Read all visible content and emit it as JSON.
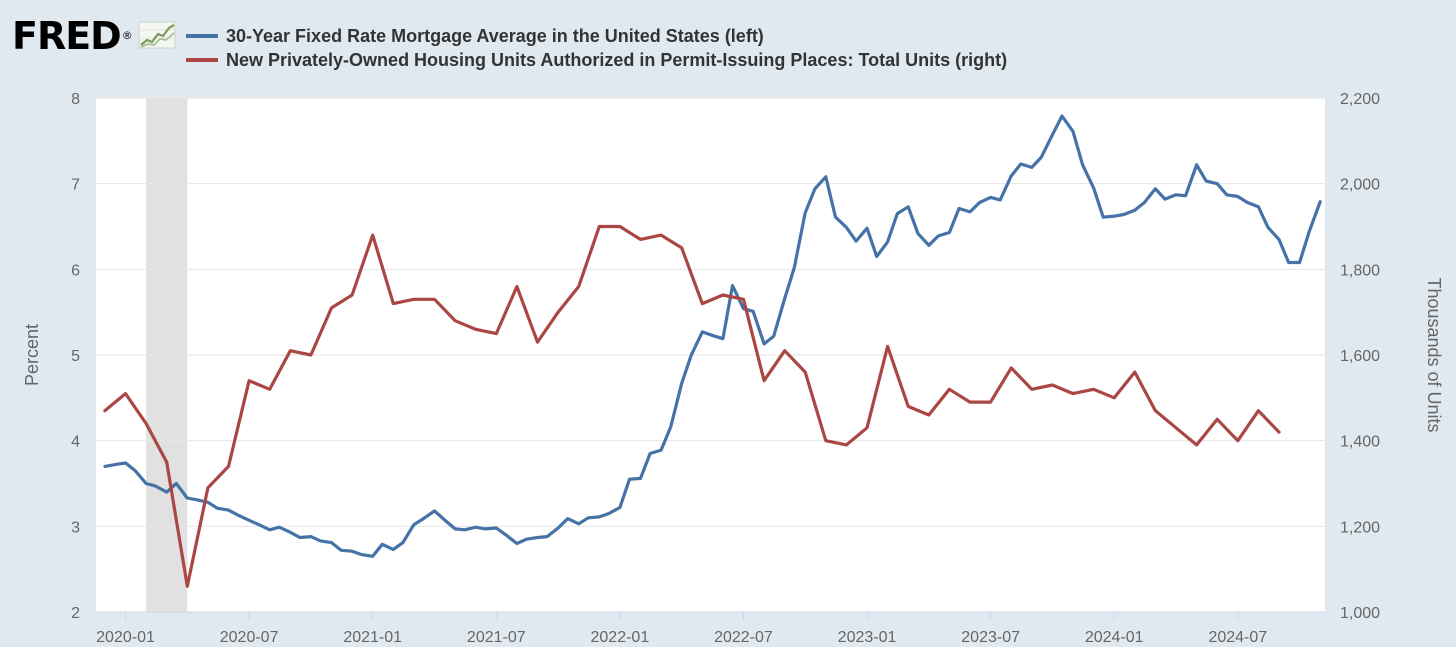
{
  "header": {
    "logo_text": "FRED",
    "logo_mark": "®",
    "logo_icon": "fred-chart-icon"
  },
  "colors": {
    "background": "#e1e9f0",
    "plot_background": "#ffffff",
    "gridline": "#e6e6e6",
    "recession_shading": "#e1e1e1",
    "mortgage_series": "#4572a7",
    "permits_series": "#aa4643"
  },
  "chart_data": {
    "type": "line",
    "title": "",
    "xlabel": "",
    "ylabel": "Percent",
    "y2label": "Thousands of Units",
    "x_ticks": [
      "2020-01",
      "2020-07",
      "2021-01",
      "2021-07",
      "2022-01",
      "2022-07",
      "2023-01",
      "2023-07",
      "2024-01",
      "2024-07"
    ],
    "ylim": [
      2,
      8
    ],
    "y_ticks": [
      "2",
      "3",
      "4",
      "5",
      "6",
      "7",
      "8"
    ],
    "y2lim": [
      1000,
      2200
    ],
    "y2_ticks": [
      "1,000",
      "1,200",
      "1,400",
      "1,600",
      "1,800",
      "2,000",
      "2,200"
    ],
    "grid": true,
    "legend_position": "top-left",
    "recession": {
      "start": "2020-02",
      "end": "2020-04"
    },
    "series": [
      {
        "name": "30-Year Fixed Rate Mortgage Average in the United States (left)",
        "axis": "left",
        "x": [
          "2019-12-01",
          "2019-12-15",
          "2020-01-01",
          "2020-01-15",
          "2020-02-01",
          "2020-02-15",
          "2020-03-01",
          "2020-03-15",
          "2020-04-01",
          "2020-04-15",
          "2020-05-01",
          "2020-05-15",
          "2020-06-01",
          "2020-06-15",
          "2020-07-01",
          "2020-07-15",
          "2020-08-01",
          "2020-08-15",
          "2020-09-01",
          "2020-09-15",
          "2020-10-01",
          "2020-10-15",
          "2020-11-01",
          "2020-11-15",
          "2020-12-01",
          "2020-12-15",
          "2021-01-01",
          "2021-01-15",
          "2021-02-01",
          "2021-02-15",
          "2021-03-01",
          "2021-03-15",
          "2021-04-01",
          "2021-04-15",
          "2021-05-01",
          "2021-05-15",
          "2021-06-01",
          "2021-06-15",
          "2021-07-01",
          "2021-07-15",
          "2021-08-01",
          "2021-08-15",
          "2021-09-01",
          "2021-09-15",
          "2021-10-01",
          "2021-10-15",
          "2021-11-01",
          "2021-11-15",
          "2021-12-01",
          "2021-12-15",
          "2022-01-01",
          "2022-01-15",
          "2022-02-01",
          "2022-02-15",
          "2022-03-01",
          "2022-03-15",
          "2022-04-01",
          "2022-04-15",
          "2022-05-01",
          "2022-05-15",
          "2022-06-01",
          "2022-06-15",
          "2022-07-01",
          "2022-07-15",
          "2022-08-01",
          "2022-08-15",
          "2022-09-01",
          "2022-09-15",
          "2022-10-01",
          "2022-10-15",
          "2022-11-01",
          "2022-11-15",
          "2022-12-01",
          "2022-12-15",
          "2023-01-01",
          "2023-01-15",
          "2023-02-01",
          "2023-02-15",
          "2023-03-01",
          "2023-03-15",
          "2023-04-01",
          "2023-04-15",
          "2023-05-01",
          "2023-05-15",
          "2023-06-01",
          "2023-06-15",
          "2023-07-01",
          "2023-07-15",
          "2023-08-01",
          "2023-08-15",
          "2023-09-01",
          "2023-09-15",
          "2023-10-01",
          "2023-10-15",
          "2023-11-01",
          "2023-11-15",
          "2023-12-01",
          "2023-12-15",
          "2024-01-01",
          "2024-01-15",
          "2024-02-01",
          "2024-02-15",
          "2024-03-01",
          "2024-03-15",
          "2024-04-01",
          "2024-04-15",
          "2024-05-01",
          "2024-05-15",
          "2024-06-01",
          "2024-06-15",
          "2024-07-01",
          "2024-07-15",
          "2024-08-01",
          "2024-08-15",
          "2024-09-01",
          "2024-09-15",
          "2024-10-01",
          "2024-10-15",
          "2024-11-01"
        ],
        "y": [
          3.7,
          3.72,
          3.74,
          3.65,
          3.5,
          3.47,
          3.4,
          3.5,
          3.33,
          3.31,
          3.28,
          3.21,
          3.19,
          3.13,
          3.07,
          3.02,
          2.96,
          2.99,
          2.93,
          2.87,
          2.88,
          2.83,
          2.81,
          2.72,
          2.71,
          2.67,
          2.65,
          2.79,
          2.73,
          2.81,
          3.02,
          3.09,
          3.18,
          3.08,
          2.97,
          2.96,
          2.99,
          2.97,
          2.98,
          2.9,
          2.8,
          2.85,
          2.87,
          2.88,
          2.98,
          3.09,
          3.03,
          3.1,
          3.11,
          3.15,
          3.22,
          3.55,
          3.56,
          3.85,
          3.89,
          4.16,
          4.67,
          5.0,
          5.27,
          5.23,
          5.19,
          5.81,
          5.54,
          5.51,
          5.13,
          5.22,
          5.66,
          6.02,
          6.66,
          6.94,
          7.08,
          6.61,
          6.49,
          6.33,
          6.48,
          6.15,
          6.32,
          6.65,
          6.73,
          6.42,
          6.28,
          6.39,
          6.43,
          6.71,
          6.67,
          6.78,
          6.84,
          6.81,
          7.09,
          7.23,
          7.19,
          7.31,
          7.57,
          7.79,
          7.61,
          7.22,
          6.95,
          6.61,
          6.62,
          6.64,
          6.69,
          6.78,
          6.94,
          6.82,
          6.87,
          6.86,
          7.22,
          7.03,
          7.0,
          6.87,
          6.85,
          6.78,
          6.73,
          6.49,
          6.35,
          6.08,
          6.08,
          6.44,
          6.79
        ]
      },
      {
        "name": "New Privately-Owned Housing Units Authorized in Permit-Issuing Places: Total Units (right)",
        "axis": "right",
        "x": [
          "2019-12-01",
          "2020-01-01",
          "2020-02-01",
          "2020-03-01",
          "2020-04-01",
          "2020-05-01",
          "2020-06-01",
          "2020-07-01",
          "2020-08-01",
          "2020-09-01",
          "2020-10-01",
          "2020-11-01",
          "2020-12-01",
          "2021-01-01",
          "2021-02-01",
          "2021-03-01",
          "2021-04-01",
          "2021-05-01",
          "2021-06-01",
          "2021-07-01",
          "2021-08-01",
          "2021-09-01",
          "2021-10-01",
          "2021-11-01",
          "2021-12-01",
          "2022-01-01",
          "2022-02-01",
          "2022-03-01",
          "2022-04-01",
          "2022-05-01",
          "2022-06-01",
          "2022-07-01",
          "2022-08-01",
          "2022-09-01",
          "2022-10-01",
          "2022-11-01",
          "2022-12-01",
          "2023-01-01",
          "2023-02-01",
          "2023-03-01",
          "2023-04-01",
          "2023-05-01",
          "2023-06-01",
          "2023-07-01",
          "2023-08-01",
          "2023-09-01",
          "2023-10-01",
          "2023-11-01",
          "2023-12-01",
          "2024-01-01",
          "2024-02-01",
          "2024-03-01",
          "2024-04-01",
          "2024-05-01",
          "2024-06-01",
          "2024-07-01",
          "2024-08-01",
          "2024-09-01"
        ],
        "y": [
          1470,
          1510,
          1440,
          1350,
          1060,
          1290,
          1340,
          1540,
          1520,
          1610,
          1600,
          1710,
          1740,
          1880,
          1720,
          1730,
          1730,
          1680,
          1660,
          1650,
          1760,
          1630,
          1700,
          1760,
          1900,
          1900,
          1870,
          1880,
          1850,
          1720,
          1740,
          1730,
          1540,
          1610,
          1560,
          1400,
          1390,
          1430,
          1620,
          1480,
          1460,
          1520,
          1490,
          1490,
          1570,
          1520,
          1530,
          1510,
          1520,
          1500,
          1560,
          1470,
          1430,
          1390,
          1450,
          1400,
          1470,
          1420
        ]
      }
    ]
  }
}
